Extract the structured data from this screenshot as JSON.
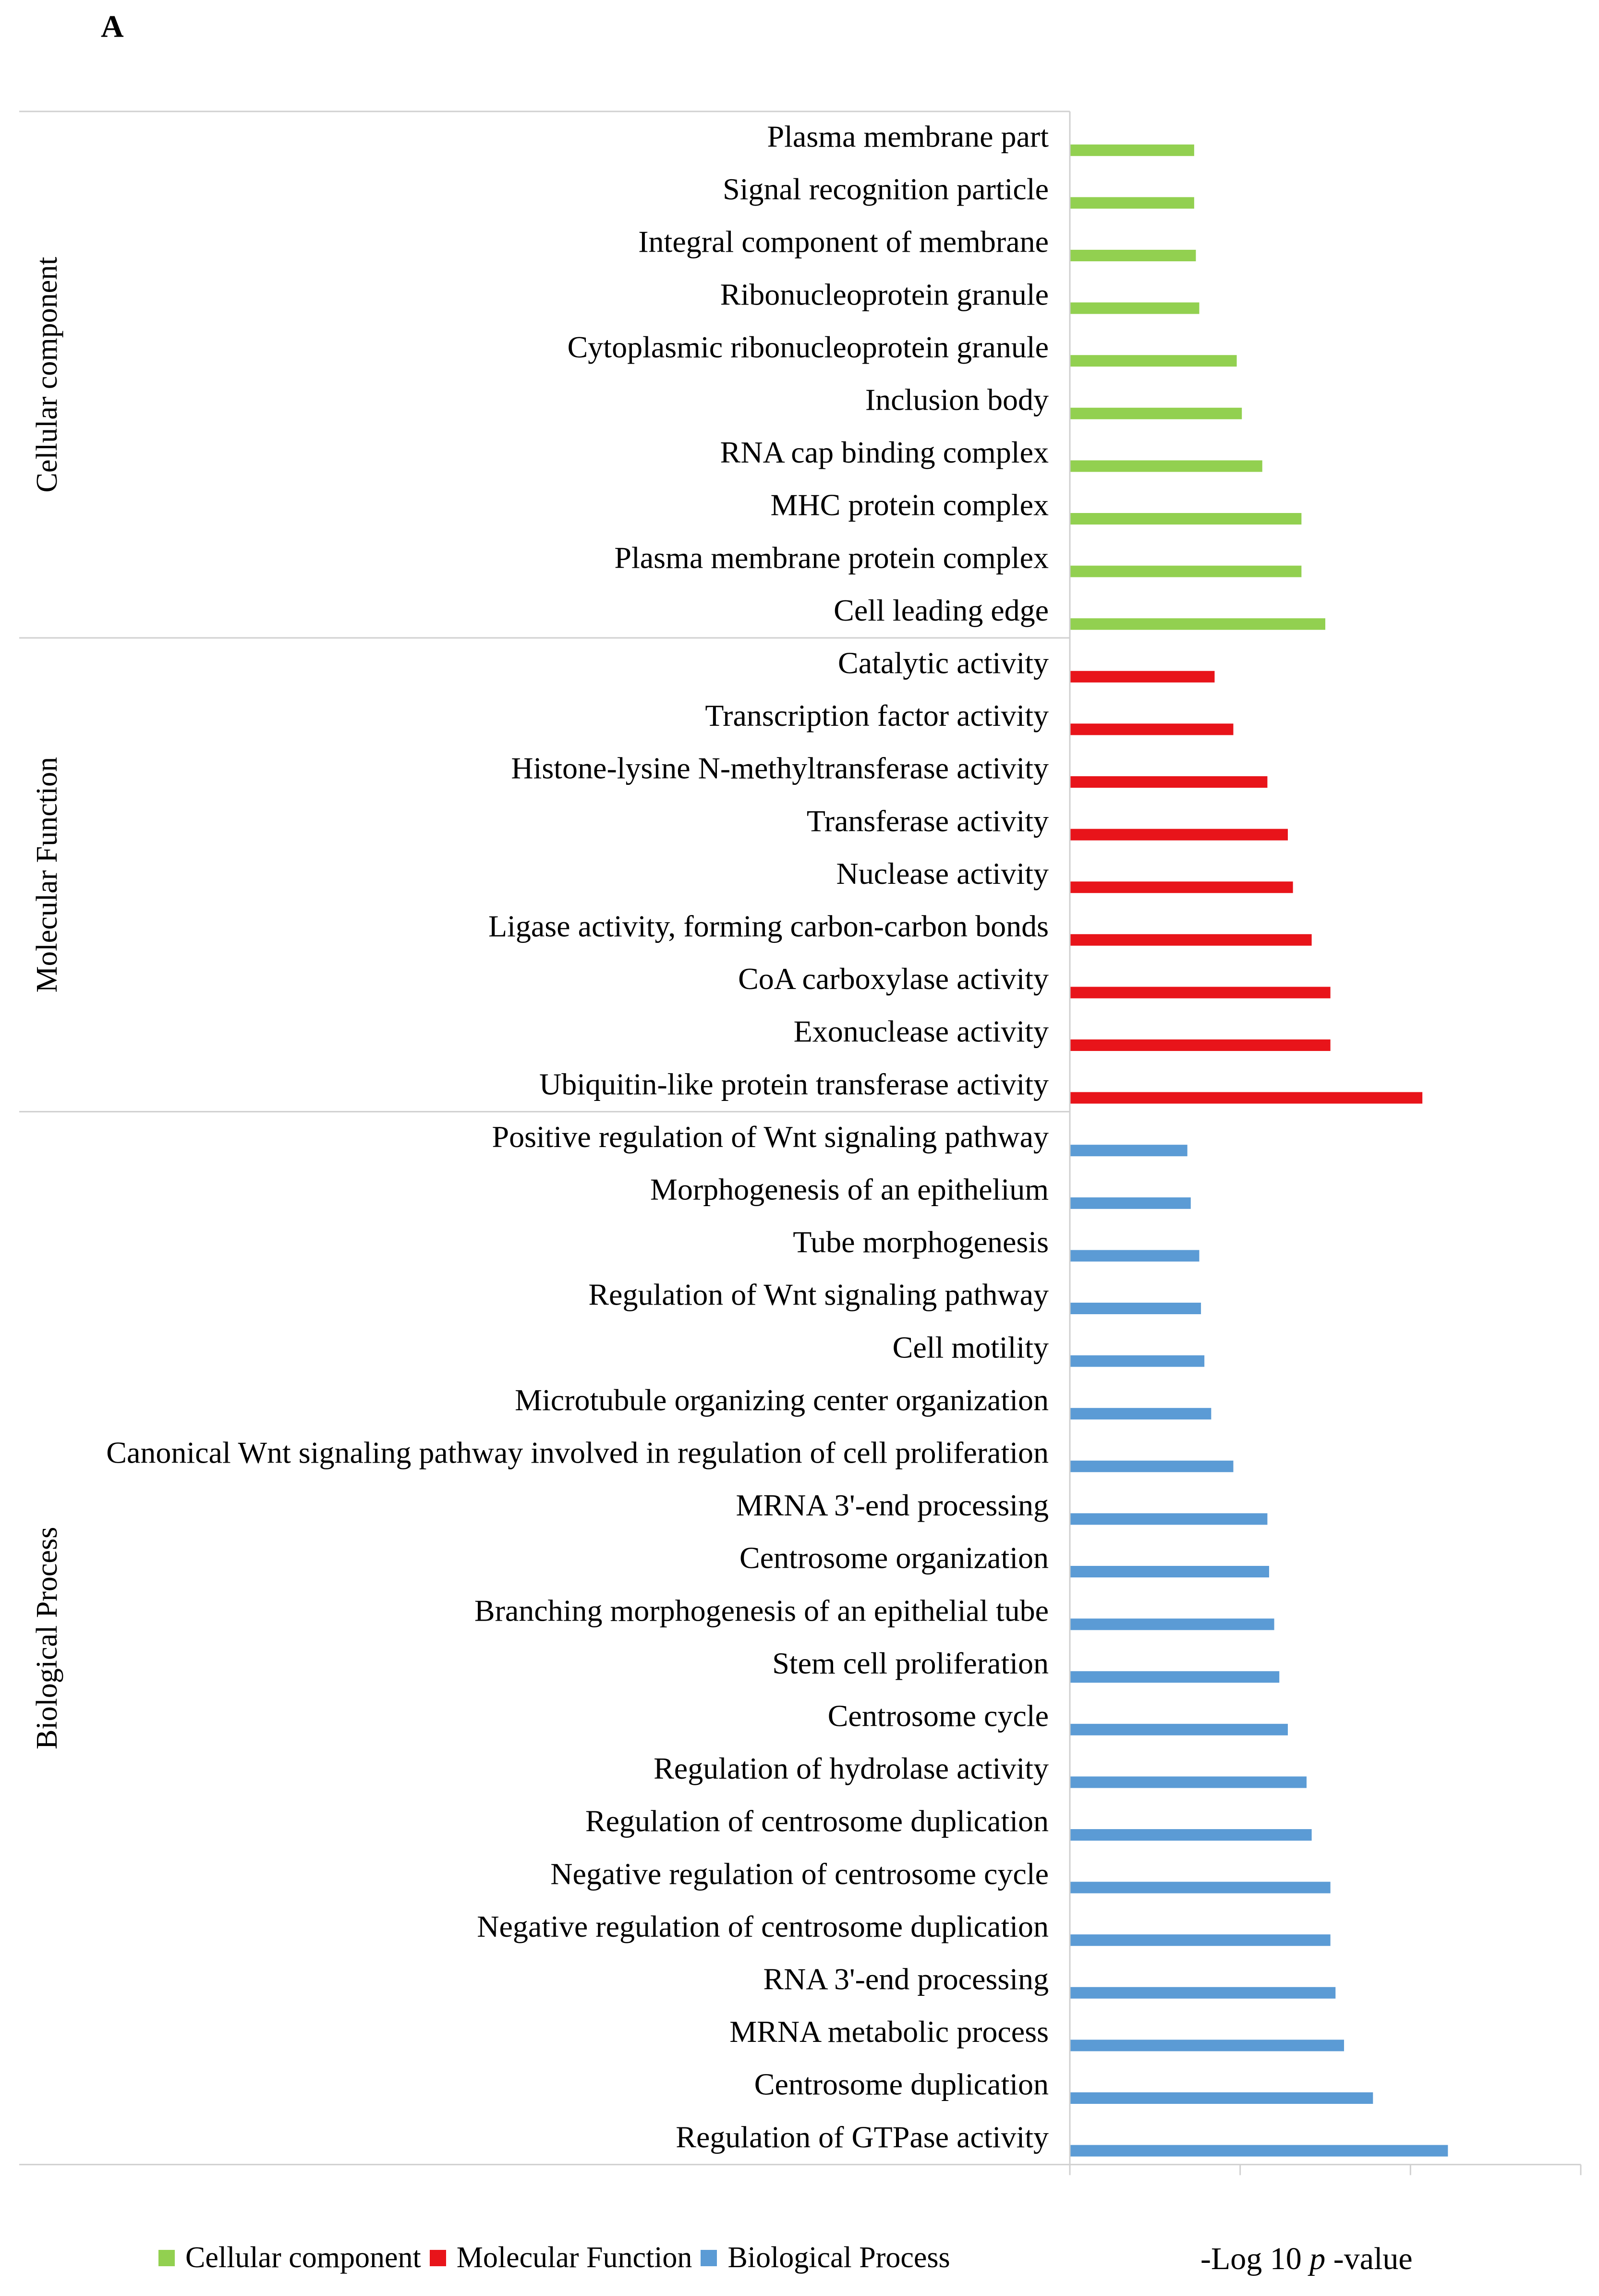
{
  "panel_label": "A",
  "colors": {
    "cellular_component": "#92D050",
    "molecular_function": "#E8141A",
    "biological_process": "#5B9BD5",
    "axis": "#D0D0D0"
  },
  "chart_data": {
    "type": "bar",
    "orientation": "horizontal",
    "xlabel": {
      "prefix": "-Log 10 ",
      "italic": "p",
      "suffix": " -value"
    },
    "xlim": [
      0,
      6
    ],
    "xticks": [
      0,
      2,
      4,
      6
    ],
    "grid": false,
    "legend_position": "bottom",
    "groups": [
      {
        "name": "Cellular component",
        "color_key": "cellular_component",
        "categories": [
          "Plasma membrane part",
          "Signal recognition particle",
          "Integral component of membrane",
          "Ribonucleoprotein granule",
          "Cytoplasmic ribonucleoprotein granule",
          "Inclusion body",
          "RNA cap binding complex",
          "MHC protein complex",
          "Plasma membrane protein complex",
          "Cell leading edge"
        ],
        "values": [
          1.46,
          1.46,
          1.48,
          1.52,
          1.96,
          2.02,
          2.26,
          2.72,
          2.72,
          3.0
        ]
      },
      {
        "name": "Molecular Function",
        "color_key": "molecular_function",
        "categories": [
          "Catalytic activity",
          "Transcription factor activity",
          "Histone-lysine N-methyltransferase activity",
          "Transferase activity",
          "Nuclease activity",
          "Ligase activity, forming carbon-carbon bonds",
          "CoA carboxylase activity",
          "Exonuclease activity",
          "Ubiquitin-like protein transferase activity"
        ],
        "values": [
          1.7,
          1.92,
          2.32,
          2.56,
          2.62,
          2.84,
          3.06,
          3.06,
          4.14
        ]
      },
      {
        "name": "Biological Process",
        "color_key": "biological_process",
        "categories": [
          "Positive regulation of Wnt signaling pathway",
          "Morphogenesis of an epithelium",
          "Tube morphogenesis",
          "Regulation of Wnt signaling pathway",
          "Cell motility",
          "Microtubule organizing center organization",
          "Canonical Wnt signaling pathway involved in regulation of cell proliferation",
          "MRNA 3'-end processing",
          "Centrosome organization",
          "Branching morphogenesis of an epithelial tube",
          "Stem cell proliferation",
          "Centrosome cycle",
          "Regulation of hydrolase activity",
          "Regulation of centrosome duplication",
          "Negative regulation of centrosome cycle",
          "Negative regulation of centrosome duplication",
          "RNA 3'-end processing",
          "MRNA metabolic process",
          "Centrosome duplication",
          "Regulation of GTPase activity"
        ],
        "values": [
          1.38,
          1.42,
          1.52,
          1.54,
          1.58,
          1.66,
          1.92,
          2.32,
          2.34,
          2.4,
          2.46,
          2.56,
          2.78,
          2.84,
          3.06,
          3.06,
          3.12,
          3.22,
          3.56,
          4.44
        ]
      }
    ]
  },
  "legend": [
    {
      "label": "Cellular component",
      "color_key": "cellular_component"
    },
    {
      "label": "Molecular Function",
      "color_key": "molecular_function"
    },
    {
      "label": "Biological Process",
      "color_key": "biological_process"
    }
  ]
}
